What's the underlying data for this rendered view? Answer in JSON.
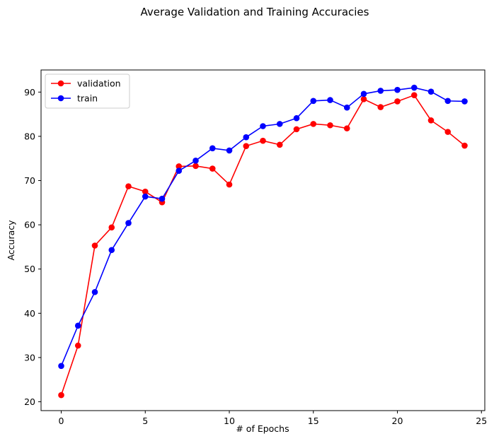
{
  "chart_data": {
    "type": "line",
    "title": "Average Validation and Training Accuracies",
    "xlabel": "# of Epochs",
    "ylabel": "Accuracy",
    "xlim": [
      -1.2,
      25.2
    ],
    "ylim": [
      18,
      95
    ],
    "xticks": [
      0,
      5,
      10,
      15,
      20,
      25
    ],
    "yticks": [
      20,
      30,
      40,
      50,
      60,
      70,
      80,
      90
    ],
    "grid": false,
    "legend_position": "top-left",
    "x": [
      0,
      1,
      2,
      3,
      4,
      5,
      6,
      7,
      8,
      9,
      10,
      11,
      12,
      13,
      14,
      15,
      16,
      17,
      18,
      19,
      20,
      21,
      22,
      23,
      24
    ],
    "series": [
      {
        "name": "validation",
        "color": "#ff0000",
        "marker": "circle",
        "values": [
          21.5,
          32.7,
          55.3,
          59.4,
          68.7,
          67.5,
          65.1,
          73.2,
          73.3,
          72.7,
          69.1,
          77.8,
          79.0,
          78.1,
          81.6,
          82.8,
          82.5,
          81.8,
          88.4,
          86.6,
          87.9,
          89.3,
          83.6,
          81.0,
          77.9
        ]
      },
      {
        "name": "train",
        "color": "#0000ff",
        "marker": "circle",
        "values": [
          28.1,
          37.2,
          44.8,
          54.3,
          60.4,
          66.4,
          65.9,
          72.2,
          74.5,
          77.3,
          76.8,
          79.8,
          82.3,
          82.8,
          84.1,
          88.0,
          88.2,
          86.5,
          89.6,
          90.3,
          90.5,
          91.0,
          90.1,
          88.0,
          87.9
        ]
      }
    ]
  }
}
